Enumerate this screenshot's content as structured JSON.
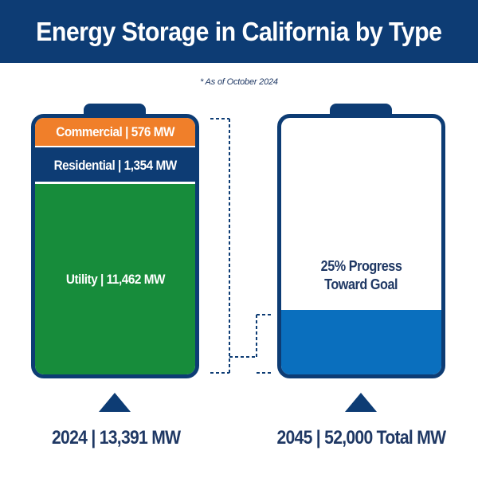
{
  "title": "Energy Storage in California by Type",
  "note": "* As of October 2024",
  "colors": {
    "navy": "#0d3c74",
    "orange": "#f07f2a",
    "green": "#178c3b",
    "blue": "#0a6fbe"
  },
  "chart_data": {
    "type": "bar",
    "stacked": true,
    "batteries": [
      {
        "segments": [
          {
            "name": "Commercial",
            "value": 576,
            "label": "Commercial | 576 MW",
            "color": "#f07f2a"
          },
          {
            "name": "Residential",
            "value": 1354,
            "label": "Residential | 1,354 MW",
            "color": "#0d3c74"
          },
          {
            "name": "Utility",
            "value": 11462,
            "label": "Utility | 11,462 MW",
            "color": "#178c3b"
          }
        ],
        "footer": "2024 | 13,391 MW",
        "year": 2024,
        "total_mw": 13391
      },
      {
        "progress_fraction": 0.25,
        "progress_label": "25% Progress Toward Goal",
        "progress_line1": "25% Progress",
        "progress_line2": "Toward Goal",
        "fill_color": "#0a6fbe",
        "footer": "2045 | 52,000 Total  MW",
        "year": 2045,
        "total_mw": 52000
      }
    ]
  }
}
